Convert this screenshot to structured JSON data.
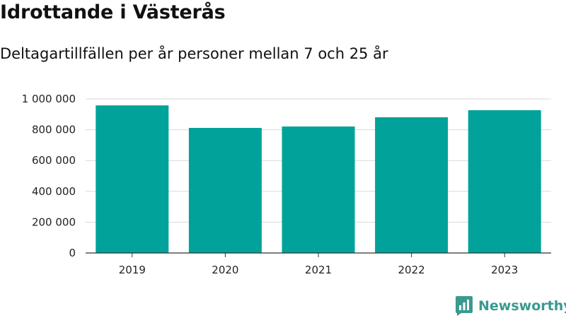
{
  "title": "Idrottande i Västerås",
  "subtitle": "Deltagartillfällen per år personer mellan 7 och 25 år",
  "brand": {
    "name": "Newsworthy",
    "icon": "newsworthy-logo-icon",
    "color": "#3a9a8f"
  },
  "colors": {
    "bar": "#00a29a",
    "grid": "#d9d9d9",
    "axis": "#333333"
  },
  "chart_data": {
    "type": "bar",
    "title": "Idrottande i Västerås",
    "subtitle": "Deltagartillfällen per år personer mellan 7 och 25 år",
    "categories": [
      "2019",
      "2020",
      "2021",
      "2022",
      "2023"
    ],
    "values": [
      958000,
      812000,
      821000,
      881000,
      927000
    ],
    "ylim": [
      0,
      1000000
    ],
    "yticks": [
      0,
      200000,
      400000,
      600000,
      800000,
      1000000
    ],
    "ytick_labels": [
      "0",
      "200 000",
      "400 000",
      "600 000",
      "800 000",
      "1 000 000"
    ],
    "xlabel": "",
    "ylabel": "",
    "grid": true,
    "legend": "none"
  }
}
